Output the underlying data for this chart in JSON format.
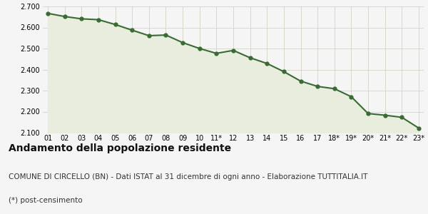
{
  "x_labels": [
    "01",
    "02",
    "03",
    "04",
    "05",
    "06",
    "07",
    "08",
    "09",
    "10",
    "11*",
    "12",
    "13",
    "14",
    "15",
    "16",
    "17",
    "18*",
    "19*",
    "20*",
    "21*",
    "22*",
    "23*"
  ],
  "y_values": [
    2667,
    2652,
    2641,
    2637,
    2614,
    2587,
    2561,
    2564,
    2528,
    2500,
    2477,
    2491,
    2456,
    2429,
    2390,
    2345,
    2320,
    2309,
    2271,
    2191,
    2183,
    2173,
    2122
  ],
  "line_color": "#3a6b35",
  "fill_color": "#e8eddd",
  "marker_color": "#3a6b35",
  "bg_color": "#f5f5f5",
  "grid_color": "#ccccbb",
  "ylim": [
    2100,
    2700
  ],
  "yticks": [
    2100,
    2200,
    2300,
    2400,
    2500,
    2600,
    2700
  ],
  "title": "Andamento della popolazione residente",
  "subtitle": "COMUNE DI CIRCELLO (BN) - Dati ISTAT al 31 dicembre di ogni anno - Elaborazione TUTTITALIA.IT",
  "footnote": "(*) post-censimento",
  "title_fontsize": 10,
  "subtitle_fontsize": 7.5,
  "footnote_fontsize": 7.5
}
